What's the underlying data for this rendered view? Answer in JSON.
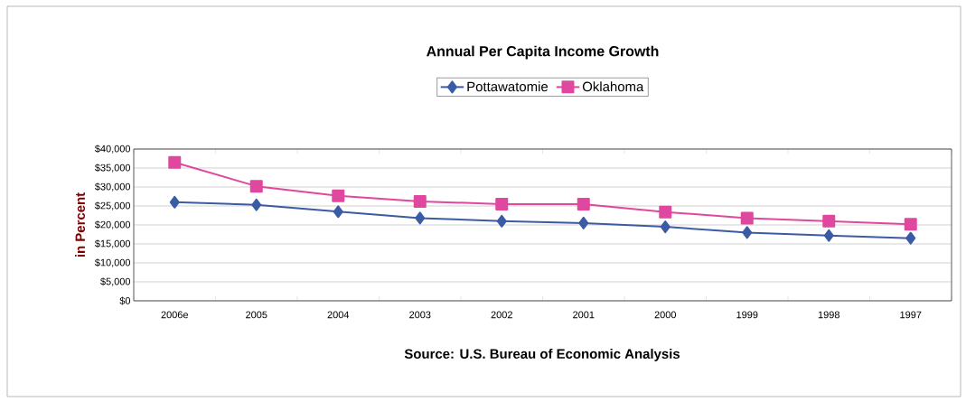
{
  "chart_data": {
    "type": "line",
    "title": "Annual Per Capita Income Growth",
    "ylabel": "in Percent",
    "categories": [
      "2006e",
      "2005",
      "2004",
      "2003",
      "2002",
      "2001",
      "2000",
      "1999",
      "1998",
      "1997"
    ],
    "series": [
      {
        "name": "Pottawatomie",
        "color": "#3b5ba5",
        "marker": "diamond",
        "values": [
          26000,
          25300,
          23500,
          21800,
          21000,
          20500,
          19500,
          18000,
          17200,
          16500
        ]
      },
      {
        "name": "Oklahoma",
        "color": "#e0479e",
        "marker": "square",
        "values": [
          36500,
          30200,
          27700,
          26200,
          25500,
          25500,
          23400,
          21800,
          21000,
          20200
        ]
      }
    ],
    "ylim": [
      0,
      40000
    ],
    "yticks": [
      {
        "value": 0,
        "label": "$0"
      },
      {
        "value": 5000,
        "label": "$5,000"
      },
      {
        "value": 10000,
        "label": "$10,000"
      },
      {
        "value": 15000,
        "label": "$15,000"
      },
      {
        "value": 20000,
        "label": "$20,000"
      },
      {
        "value": 25000,
        "label": "$25,000"
      },
      {
        "value": 30000,
        "label": "$30,000"
      },
      {
        "value": 35000,
        "label": "$35,000"
      },
      {
        "value": 40000,
        "label": "$40,000"
      }
    ],
    "grid": "y",
    "legend": "top",
    "line_style": "solid",
    "annotations": [
      "Source: U.S. Bureau of Economic Analysis"
    ]
  }
}
